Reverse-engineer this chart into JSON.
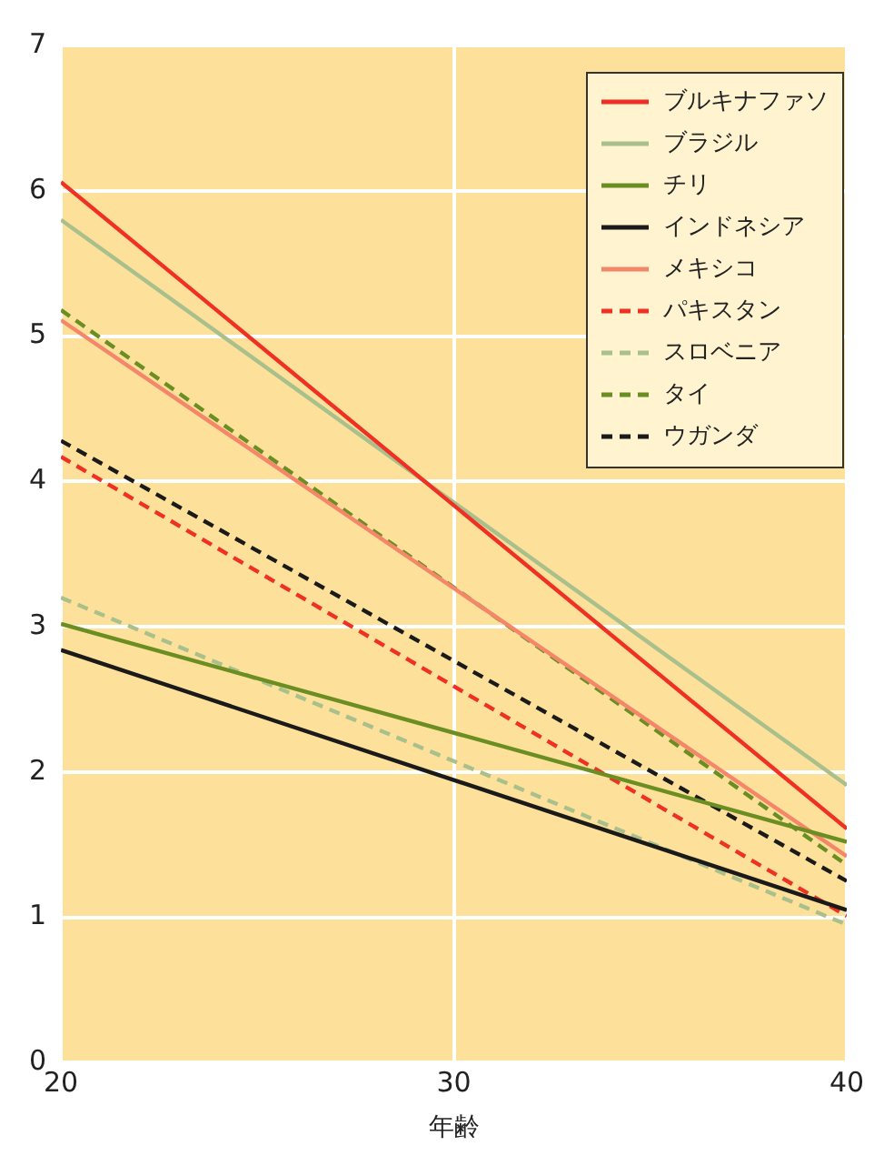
{
  "chart_data": {
    "type": "line",
    "xlabel": "年齢",
    "x": [
      20,
      40
    ],
    "xlim": [
      20,
      40
    ],
    "xticks": [
      20,
      30,
      40
    ],
    "ylim": [
      0,
      7
    ],
    "yticks": [
      0,
      1,
      2,
      3,
      4,
      5,
      6,
      7
    ],
    "grid": true,
    "legend": "top right",
    "marker": "none",
    "series": [
      {
        "name": "ブルキナファソ",
        "color": "#ee3124",
        "values": [
          6.06,
          1.61
        ],
        "line_style": "solid"
      },
      {
        "name": "ブラジル",
        "color": "#a9c08c",
        "values": [
          5.8,
          1.91
        ],
        "line_style": "solid"
      },
      {
        "name": "チリ",
        "color": "#6b8e23",
        "values": [
          3.02,
          1.52
        ],
        "line_style": "solid"
      },
      {
        "name": "インドネシア",
        "color": "#1a1a1a",
        "values": [
          2.84,
          1.05
        ],
        "line_style": "solid"
      },
      {
        "name": "メキシコ",
        "color": "#f4876a",
        "values": [
          5.11,
          1.42
        ],
        "line_style": "solid"
      },
      {
        "name": "パキスタン",
        "color": "#ee3124",
        "values": [
          4.17,
          1.01
        ],
        "line_style": "dashed"
      },
      {
        "name": "スロベニア",
        "color": "#a9c08c",
        "values": [
          3.2,
          0.95
        ],
        "line_style": "dashed"
      },
      {
        "name": "タイ",
        "color": "#6b8e23",
        "values": [
          5.18,
          1.36
        ],
        "line_style": "dashed"
      },
      {
        "name": "ウガンダ",
        "color": "#1a1a1a",
        "values": [
          4.28,
          1.25
        ],
        "line_style": "dashed"
      }
    ]
  }
}
